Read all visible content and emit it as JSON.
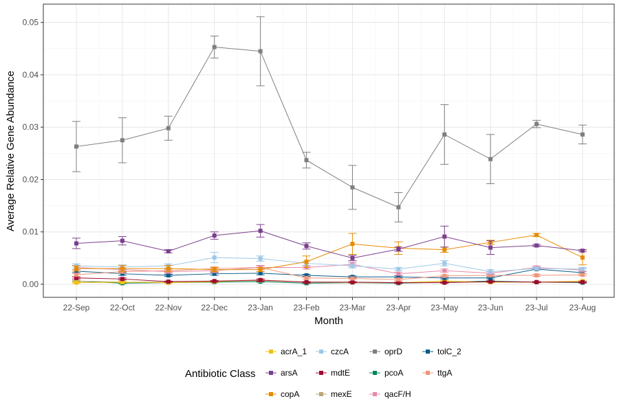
{
  "chart_data": {
    "type": "line",
    "title": "",
    "xlabel": "Month",
    "ylabel": "Average Relative Gene Abundance",
    "legend_title": "Antibiotic Class",
    "legend_position": "bottom",
    "grid": true,
    "ylim": [
      -0.0025,
      0.0535
    ],
    "yticks": [
      0.0,
      0.01,
      0.02,
      0.03,
      0.04,
      0.05
    ],
    "ytick_labels": [
      "0.00",
      "0.01",
      "0.02",
      "0.03",
      "0.04",
      "0.05"
    ],
    "categories": [
      "22-Sep",
      "22-Oct",
      "22-Nov",
      "22-Dec",
      "23-Jan",
      "23-Feb",
      "23-Mar",
      "23-Apr",
      "23-May",
      "23-Jun",
      "23-Jul",
      "23-Aug"
    ],
    "series": [
      {
        "name": "oprD",
        "color": "#7f7f7f",
        "values": [
          0.0263,
          0.0275,
          0.0298,
          0.0453,
          0.0445,
          0.0237,
          0.0185,
          0.0147,
          0.0286,
          0.0239,
          0.0306,
          0.0286
        ],
        "errors": [
          0.0048,
          0.0043,
          0.0023,
          0.0021,
          0.0066,
          0.0015,
          0.0042,
          0.0028,
          0.0057,
          0.0047,
          0.0007,
          0.0018
        ]
      },
      {
        "name": "arsA",
        "color": "#7b3f8c",
        "values": [
          0.0078,
          0.0083,
          0.0063,
          0.0093,
          0.0102,
          0.0073,
          0.005,
          0.0067,
          0.0091,
          0.007,
          0.0074,
          0.0064
        ],
        "errors": [
          0.001,
          0.0008,
          0.0003,
          0.0007,
          0.0012,
          0.0006,
          0.0005,
          0.0004,
          0.002,
          0.0013,
          0.0002,
          0.0002
        ]
      },
      {
        "name": "copA",
        "color": "#e88a00",
        "values": [
          0.003,
          0.003,
          0.003,
          0.0028,
          0.0028,
          0.0043,
          0.0077,
          0.0069,
          0.0066,
          0.008,
          0.0094,
          0.0051
        ],
        "errors": [
          0.0005,
          0.0006,
          0.0006,
          0.0004,
          0.0004,
          0.0011,
          0.002,
          0.0012,
          0.0005,
          0.0004,
          0.0003,
          0.0014
        ]
      },
      {
        "name": "czcA",
        "color": "#9dc8e8",
        "values": [
          0.0035,
          0.0033,
          0.0035,
          0.0051,
          0.0049,
          0.004,
          0.0035,
          0.0029,
          0.004,
          0.0024,
          0.003,
          0.0029
        ],
        "errors": [
          0.0004,
          0.0004,
          0.0004,
          0.001,
          0.0005,
          0.0004,
          0.0004,
          0.0003,
          0.0005,
          0.0004,
          0.0003,
          0.0003
        ]
      },
      {
        "name": "qacF/H",
        "color": "#e58aa8",
        "values": [
          0.0032,
          0.0028,
          0.0024,
          0.0026,
          0.0032,
          0.0032,
          0.0038,
          0.002,
          0.0026,
          0.0021,
          0.0032,
          0.0027
        ],
        "errors": [
          0.0004,
          0.0003,
          0.0003,
          0.0004,
          0.0004,
          0.0003,
          0.0004,
          0.0003,
          0.0003,
          0.0003,
          0.0003,
          0.0003
        ]
      },
      {
        "name": "ttgA",
        "color": "#f0957a",
        "values": [
          0.0018,
          0.0024,
          0.0026,
          0.003,
          0.0032,
          0.0012,
          0.0011,
          0.0009,
          0.0016,
          0.0017,
          0.0017,
          0.0018
        ],
        "errors": [
          0.0003,
          0.0003,
          0.0003,
          0.0003,
          0.0003,
          0.0002,
          0.0002,
          0.0002,
          0.0002,
          0.0002,
          0.0002,
          0.0002
        ]
      },
      {
        "name": "tolC_2",
        "color": "#0b5c8a",
        "values": [
          0.0025,
          0.002,
          0.0017,
          0.002,
          0.0021,
          0.0017,
          0.0014,
          0.0014,
          0.0012,
          0.0012,
          0.0029,
          0.0022
        ],
        "errors": [
          0.0003,
          0.0003,
          0.0002,
          0.0003,
          0.0003,
          0.0002,
          0.0002,
          0.0002,
          0.0002,
          0.0002,
          0.0002,
          0.0002
        ]
      },
      {
        "name": "mdtE",
        "color": "#9e0a33",
        "values": [
          0.0012,
          0.001,
          0.0005,
          0.0006,
          0.0008,
          0.0004,
          0.0004,
          0.0003,
          0.0003,
          0.0005,
          0.0004,
          0.0004
        ],
        "errors": [
          0.0002,
          0.0002,
          0.0001,
          0.0001,
          0.0002,
          0.0001,
          0.0001,
          0.0001,
          0.0001,
          0.0001,
          0.0001,
          0.0001
        ]
      },
      {
        "name": "acrA_1",
        "color": "#f2c20f",
        "values": [
          0.0003,
          0.0004,
          0.0003,
          0.0005,
          0.0008,
          0.0004,
          0.0004,
          0.0003,
          0.0006,
          0.0004,
          0.0004,
          0.0006
        ],
        "errors": [
          0.0001,
          0.0001,
          0.0001,
          0.0001,
          0.0002,
          0.0001,
          0.0001,
          0.0001,
          0.0001,
          0.0001,
          0.0001,
          0.0001
        ]
      },
      {
        "name": "mexE",
        "color": "#b9a675",
        "values": [
          0.0006,
          0.0004,
          0.0004,
          0.0006,
          0.0007,
          0.0004,
          0.0003,
          0.0003,
          0.0004,
          0.0004,
          0.0004,
          0.0004
        ],
        "errors": [
          0.0001,
          0.0001,
          0.0001,
          0.0001,
          0.0001,
          0.0001,
          0.0001,
          0.0001,
          0.0001,
          0.0001,
          0.0001,
          0.0001
        ]
      },
      {
        "name": "pcoA",
        "color": "#00855a",
        "values": [
          0.0006,
          0.0002,
          0.0003,
          0.0004,
          0.0005,
          0.0002,
          0.0003,
          0.0002,
          0.0004,
          0.0006,
          0.0004,
          0.0003
        ],
        "errors": [
          0.0001,
          0.0001,
          0.0001,
          0.0001,
          0.0001,
          0.0001,
          0.0001,
          0.0001,
          0.0001,
          0.0001,
          0.0001,
          0.0001
        ]
      }
    ],
    "legend_columns": [
      [
        "acrA_1",
        "arsA",
        "copA"
      ],
      [
        "czcA",
        "mdtE",
        "mexE"
      ],
      [
        "oprD",
        "pcoA",
        "qacF/H"
      ],
      [
        "tolC_2",
        "ttgA"
      ]
    ]
  }
}
